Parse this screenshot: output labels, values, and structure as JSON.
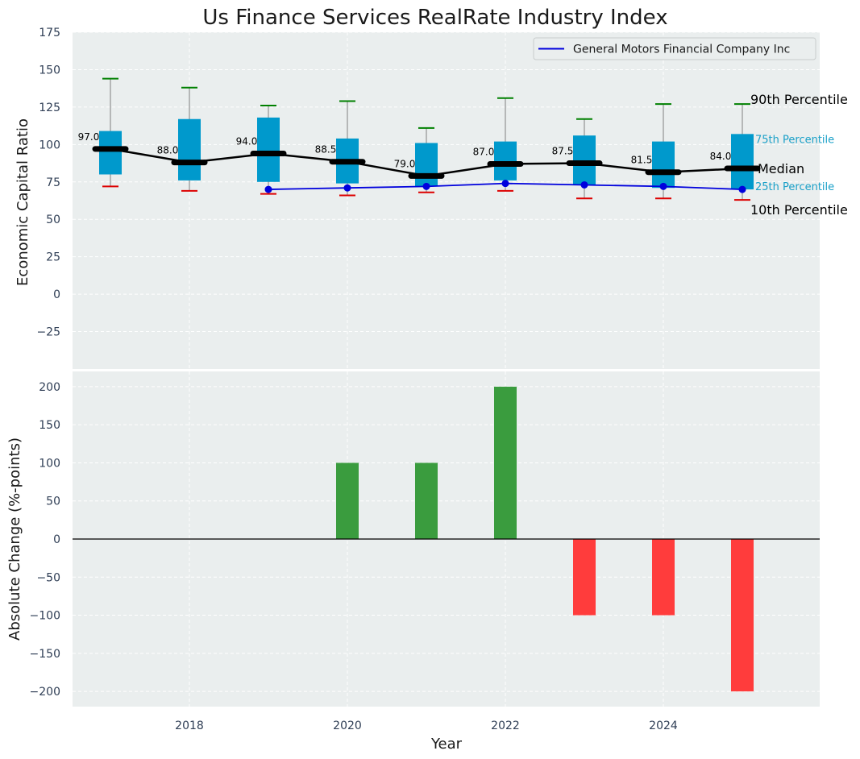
{
  "title": "Us Finance Services RealRate Industry Index",
  "colors": {
    "plot_bg": "#eaeeee",
    "box": "#0099cc",
    "median": "#000000",
    "whisker": "#808080",
    "cap_high": "#008000",
    "cap_low": "#dd0000",
    "company": "#0000dd",
    "positive": "#3a9c3e",
    "negative": "#ff3c3c",
    "percentile_25_75_text": "#1aa0c8"
  },
  "chart_data": [
    {
      "type": "box",
      "ylabel": "Economic Capital Ratio",
      "ylim": [
        -50,
        175
      ],
      "yticks": [
        -25,
        0,
        25,
        50,
        75,
        100,
        125,
        150,
        175
      ],
      "grid": true,
      "legend": {
        "position": "top-right",
        "entries": [
          "General Motors Financial Company Inc"
        ]
      },
      "x": [
        2017,
        2018,
        2019,
        2020,
        2021,
        2022,
        2023,
        2024,
        2025
      ],
      "p10": [
        72,
        69,
        67,
        66,
        68,
        69,
        64,
        64,
        63
      ],
      "p25": [
        80,
        76,
        75,
        74,
        72,
        76,
        73,
        71,
        70
      ],
      "median": [
        97.0,
        88.0,
        94.0,
        88.5,
        79.0,
        87.0,
        87.5,
        81.5,
        84.0
      ],
      "median_labels": [
        "97.0",
        "88.0",
        "94.0",
        "88.5",
        "79.0",
        "87.0",
        "87.5",
        "81.5",
        "84.0"
      ],
      "p75": [
        109,
        117,
        118,
        104,
        101,
        102,
        106,
        102,
        107
      ],
      "p90": [
        144,
        138,
        126,
        129,
        111,
        131,
        117,
        127,
        127
      ],
      "series": [
        {
          "name": "General Motors Financial Company Inc",
          "x": [
            2019,
            2020,
            2021,
            2022,
            2023,
            2024,
            2025
          ],
          "values": [
            70,
            71,
            72,
            74,
            73,
            72,
            70
          ]
        }
      ],
      "annotations": {
        "p90": "90th Percentile",
        "p75": "75th Percentile",
        "median": "Median",
        "p25": "25th Percentile",
        "p10": "10th Percentile"
      }
    },
    {
      "type": "bar",
      "xlabel": "Year",
      "ylabel": "Absolute Change (%-points)",
      "ylim": [
        -220,
        220
      ],
      "yticks": [
        -200,
        -150,
        -100,
        -50,
        0,
        50,
        100,
        150,
        200
      ],
      "xticks": [
        2018,
        2020,
        2022,
        2024
      ],
      "grid": true,
      "x": [
        2017,
        2018,
        2019,
        2020,
        2021,
        2022,
        2023,
        2024,
        2025
      ],
      "values": [
        0,
        0,
        0,
        100,
        100,
        200,
        -100,
        -100,
        -200
      ]
    }
  ]
}
